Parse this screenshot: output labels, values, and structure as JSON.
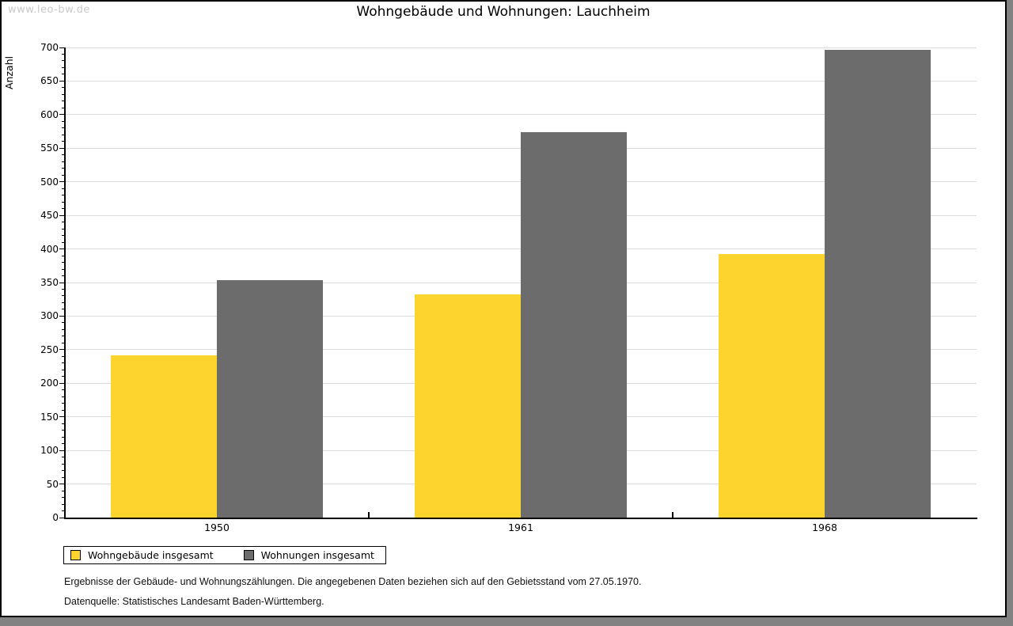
{
  "watermark": "www.leo-bw.de",
  "chart_data": {
    "type": "bar",
    "title": "Wohngebäude und Wohnungen: Lauchheim",
    "ylabel": "Anzahl",
    "xlabel": "",
    "categories": [
      "1950",
      "1961",
      "1968"
    ],
    "series": [
      {
        "name": "Wohngebäude insgesamt",
        "color": "#fcd42d",
        "values": [
          242,
          332,
          392
        ]
      },
      {
        "name": "Wohnungen insgesamt",
        "color": "#6c6c6c",
        "values": [
          353,
          574,
          697
        ]
      }
    ],
    "ylim": [
      0,
      700
    ],
    "ytick_step": 50,
    "minor_tick_step": 10,
    "grid": "horizontal-major",
    "gridline_color": "#dcdcdc",
    "legend_position": "bottom-left"
  },
  "footnotes": [
    "Ergebnisse der Gebäude- und Wohnungszählungen. Die angegebenen Daten beziehen sich auf den Gebietsstand vom 27.05.1970.",
    "Datenquelle: Statistisches Landesamt Baden-Württemberg."
  ]
}
